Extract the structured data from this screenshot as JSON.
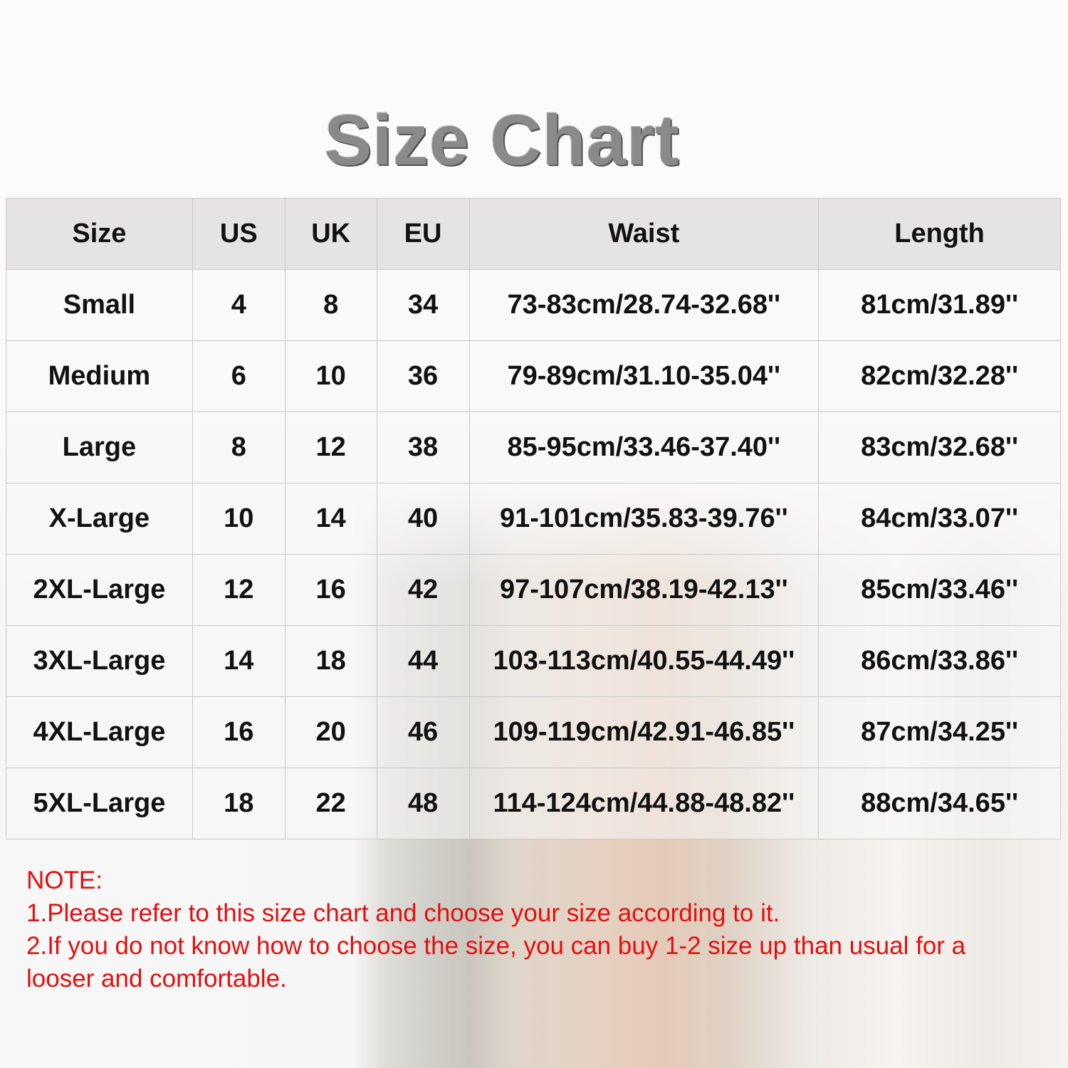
{
  "title": "Size Chart",
  "table": {
    "headers": [
      "Size",
      "US",
      "UK",
      "EU",
      "Waist",
      "Length"
    ],
    "rows": [
      [
        "Small",
        "4",
        "8",
        "34",
        "73-83cm/28.74-32.68''",
        "81cm/31.89''"
      ],
      [
        "Medium",
        "6",
        "10",
        "36",
        "79-89cm/31.10-35.04''",
        "82cm/32.28''"
      ],
      [
        "Large",
        "8",
        "12",
        "38",
        "85-95cm/33.46-37.40''",
        "83cm/32.68''"
      ],
      [
        "X-Large",
        "10",
        "14",
        "40",
        "91-101cm/35.83-39.76''",
        "84cm/33.07''"
      ],
      [
        "2XL-Large",
        "12",
        "16",
        "42",
        "97-107cm/38.19-42.13''",
        "85cm/33.46''"
      ],
      [
        "3XL-Large",
        "14",
        "18",
        "44",
        "103-113cm/40.55-44.49''",
        "86cm/33.86''"
      ],
      [
        "4XL-Large",
        "16",
        "20",
        "46",
        "109-119cm/42.91-46.85''",
        "87cm/34.25''"
      ],
      [
        "5XL-Large",
        "18",
        "22",
        "48",
        "114-124cm/44.88-48.82''",
        "88cm/34.65''"
      ]
    ]
  },
  "note": {
    "heading": "NOTE:",
    "lines": [
      "1.Please refer to this size chart and choose your size according to it.",
      "2.If you do not know how to choose the size, you can buy 1-2 size up than usual for a looser and comfortable."
    ],
    "color": "#e01010"
  }
}
